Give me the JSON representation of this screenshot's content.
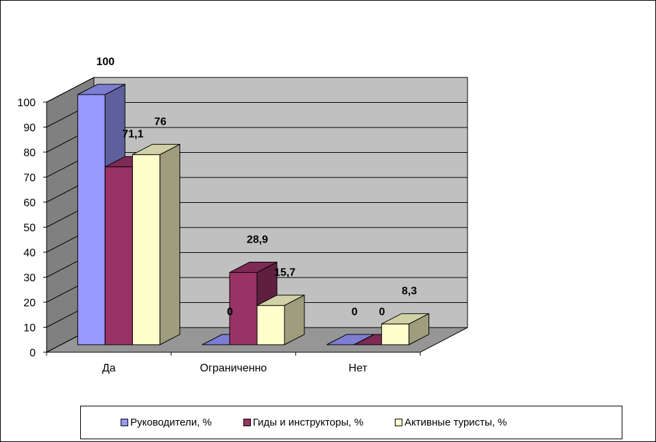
{
  "chart_data": {
    "type": "bar",
    "style": "3d-clustered-column",
    "categories": [
      "Да",
      "Ограниченно",
      "Нет"
    ],
    "series": [
      {
        "name": "Руководители, %",
        "color": "#9999ff",
        "values": [
          100,
          0,
          0
        ],
        "labels": [
          "100",
          "0",
          "0"
        ]
      },
      {
        "name": "Гиды и инструкторы, %",
        "color": "#993366",
        "values": [
          71.1,
          28.9,
          0
        ],
        "labels": [
          "71,1",
          "28,9",
          "0"
        ]
      },
      {
        "name": "Активные туристы, %",
        "color": "#ffffcc",
        "values": [
          76,
          15.7,
          8.3
        ],
        "labels": [
          "76",
          "15,7",
          "8,3"
        ]
      }
    ],
    "ylim": [
      0,
      100
    ],
    "yticks": [
      "0",
      "10",
      "20",
      "30",
      "40",
      "50",
      "60",
      "70",
      "80",
      "90",
      "100"
    ],
    "grid": true,
    "legend_position": "bottom",
    "wall_color": "#c0c0c0"
  }
}
